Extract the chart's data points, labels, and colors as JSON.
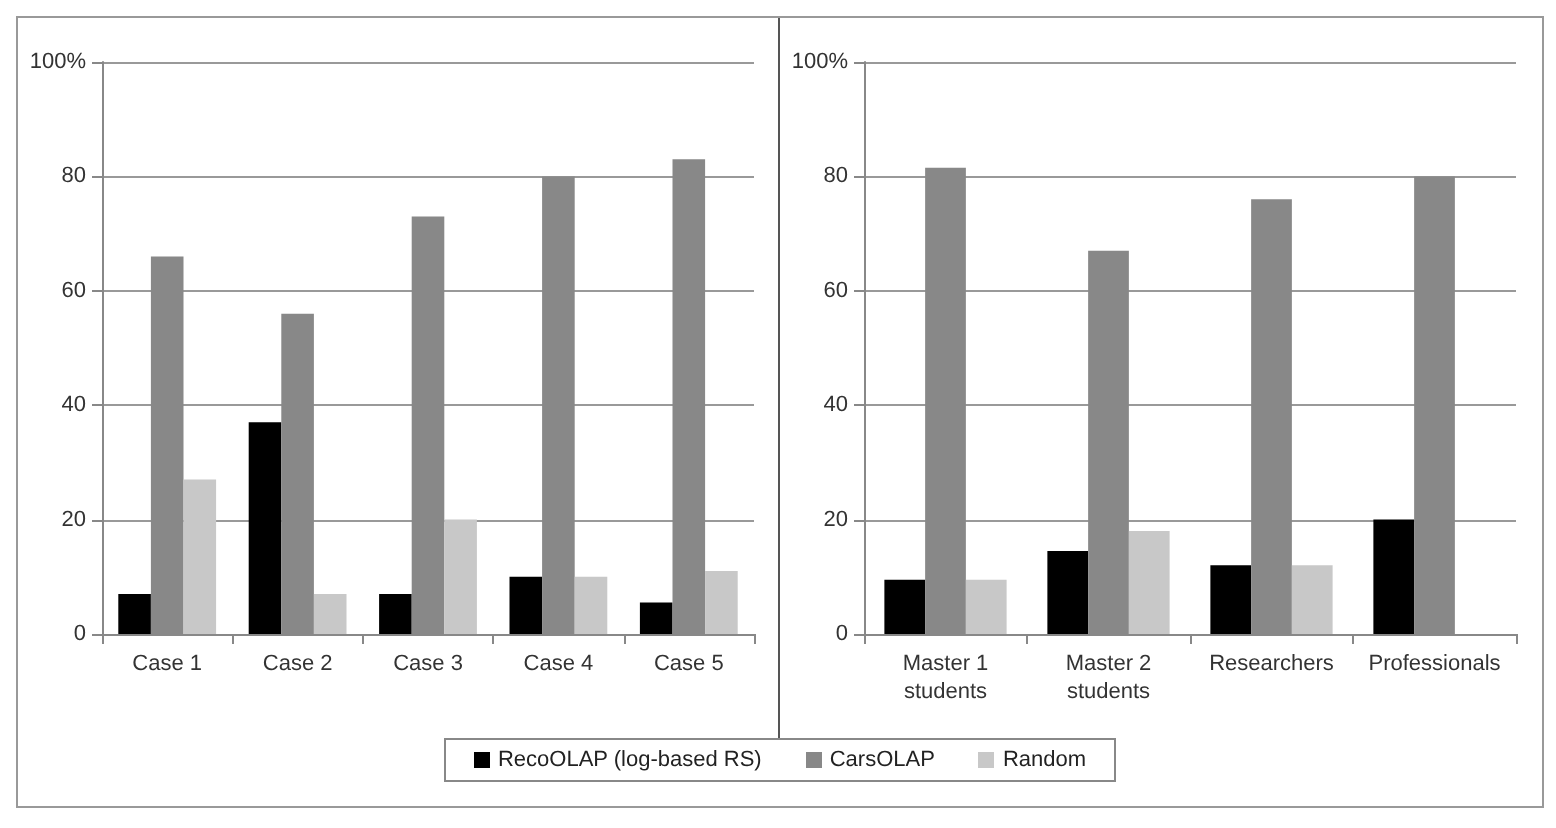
{
  "chart_data": [
    {
      "type": "bar",
      "categories": [
        "Case 1",
        "Case 2",
        "Case 3",
        "Case 4",
        "Case 5"
      ],
      "series": [
        {
          "name": "RecoOLAP (log-based RS)",
          "color": "#000000",
          "values": [
            7,
            37,
            7,
            10,
            5.5
          ]
        },
        {
          "name": "CarsOLAP",
          "color": "#888888",
          "values": [
            66,
            56,
            73,
            80,
            83
          ]
        },
        {
          "name": "Random",
          "color": "#c8c8c8",
          "values": [
            27,
            7,
            20,
            10,
            11
          ]
        }
      ],
      "ylim": [
        0,
        100
      ],
      "yticks": [
        0,
        20,
        40,
        60,
        80,
        {
          "value": 100,
          "label": "100%"
        }
      ],
      "grid": "y",
      "legend": "bottom"
    },
    {
      "type": "bar",
      "categories": [
        "Master 1\nstudents",
        "Master 2\nstudents",
        "Researchers",
        "Professionals"
      ],
      "series": [
        {
          "name": "RecoOLAP (log-based RS)",
          "color": "#000000",
          "values": [
            9.5,
            14.5,
            12,
            20
          ]
        },
        {
          "name": "CarsOLAP",
          "color": "#888888",
          "values": [
            81.5,
            67,
            76,
            80
          ]
        },
        {
          "name": "Random",
          "color": "#c8c8c8",
          "values": [
            9.5,
            18,
            12,
            null
          ]
        }
      ],
      "ylim": [
        0,
        100
      ],
      "yticks": [
        0,
        20,
        40,
        60,
        80,
        {
          "value": 100,
          "label": "100%"
        }
      ],
      "grid": "y"
    }
  ]
}
